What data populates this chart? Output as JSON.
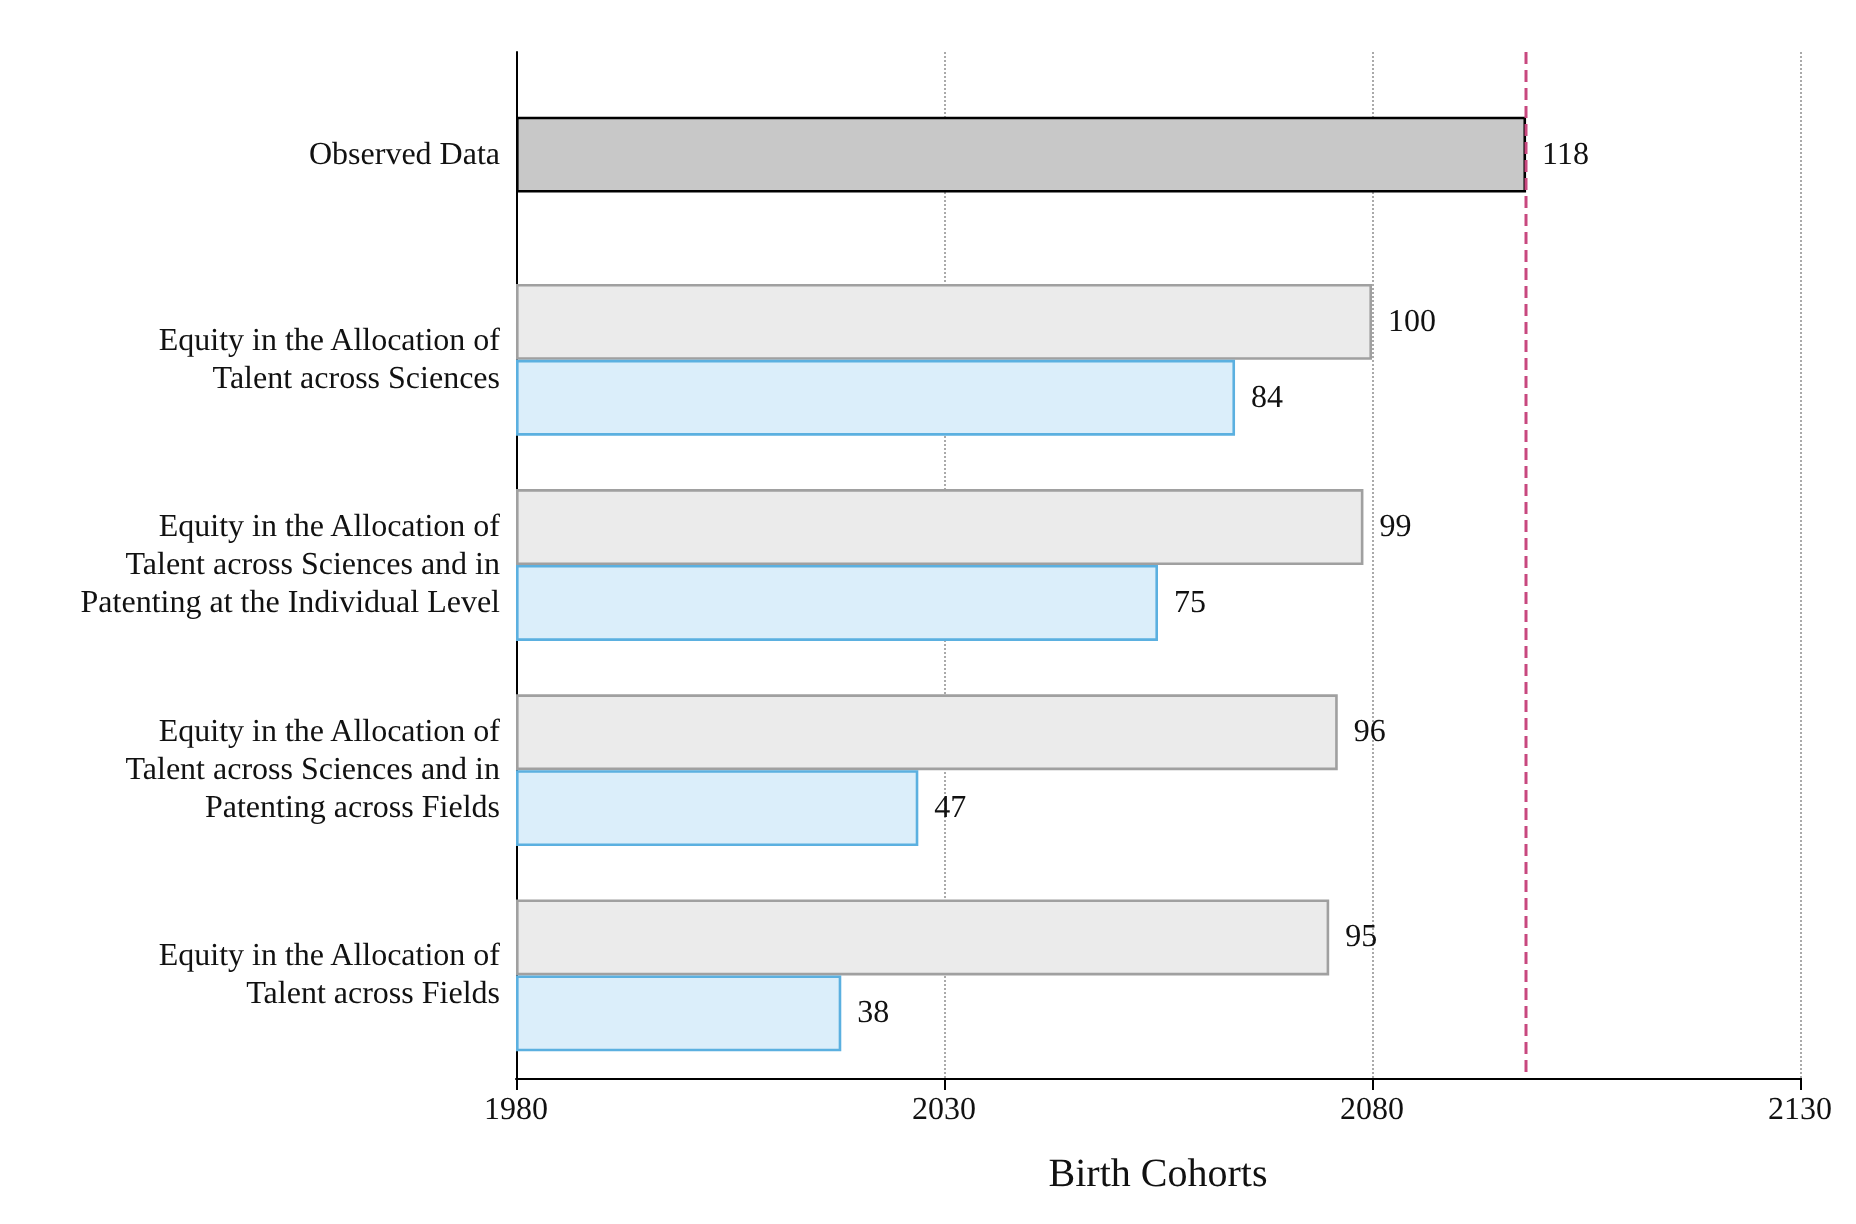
{
  "chart_data": {
    "type": "bar",
    "orientation": "horizontal",
    "xlabel": "Birth Cohorts",
    "categories": [
      "Observed Data",
      "Equity in the Allocation of\nTalent across Sciences",
      "Equity in the Allocation of\nTalent across Sciences and in\nPatenting at the Individual Level",
      "Equity in the Allocation of\nTalent across Sciences and in\nPatenting across Fields",
      "Equity in the Allocation of\nTalent across Fields"
    ],
    "series": [
      {
        "color": "#c8c8c8",
        "values": [
          118,
          null,
          null,
          null,
          null
        ],
        "base": [
          1980,
          null,
          null,
          null,
          null
        ]
      },
      {
        "color": "#ebebeb",
        "values": [
          null,
          100,
          99,
          96,
          95
        ],
        "base": [
          null,
          1980,
          1980,
          1980,
          1980
        ]
      },
      {
        "color": "#dbeefa",
        "values": [
          null,
          84,
          75,
          47,
          38
        ],
        "base": [
          null,
          1980,
          1980,
          1980,
          1980
        ]
      }
    ],
    "xlim": [
      1980,
      2130
    ],
    "xticks": [
      1980,
      2030,
      2080,
      2130
    ],
    "grid": "x",
    "data_labels": true,
    "ref_lines": [
      {
        "axis": "x",
        "value": 2098,
        "color": "#c8487f",
        "line_style": "dashed"
      }
    ]
  }
}
